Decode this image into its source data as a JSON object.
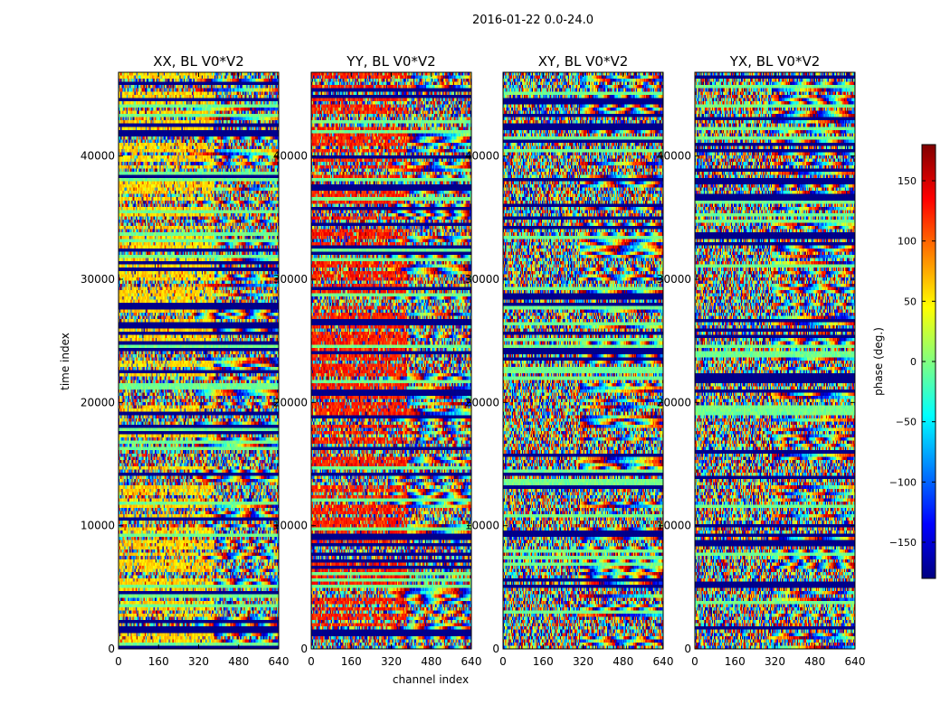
{
  "chart_data": {
    "type": "heatmap",
    "suptitle": "2016-01-22 0.0-24.0",
    "xlabel": "channel index",
    "ylabel": "time index",
    "xlim": [
      0,
      640
    ],
    "ylim": [
      0,
      46800
    ],
    "x_ticks": [
      0,
      160,
      320,
      480,
      640
    ],
    "x_tick_labels": [
      "0",
      "160",
      "320",
      "480",
      "640"
    ],
    "y_ticks": [
      0,
      10000,
      20000,
      30000,
      40000
    ],
    "y_tick_labels": [
      "0",
      "10000",
      "20000",
      "30000",
      "40000"
    ],
    "panels": [
      {
        "title": "XX, BL V0*V2",
        "pattern": "bias",
        "bias_value": 60
      },
      {
        "title": "YY, BL V0*V2",
        "pattern": "bias",
        "bias_value": 125
      },
      {
        "title": "XY, BL V0*V2",
        "pattern": "noise",
        "bias_value": 0
      },
      {
        "title": "YX, BL V0*V2",
        "pattern": "noise",
        "bias_value": 0
      }
    ],
    "colorbar": {
      "label": "phase (deg.)",
      "range": [
        -180,
        180
      ],
      "ticks": [
        150,
        100,
        50,
        0,
        -50,
        -100,
        -150
      ],
      "tick_labels": [
        "150",
        "100",
        "50",
        "0",
        "−50",
        "−100",
        "−150"
      ],
      "colormap": "jet"
    }
  }
}
